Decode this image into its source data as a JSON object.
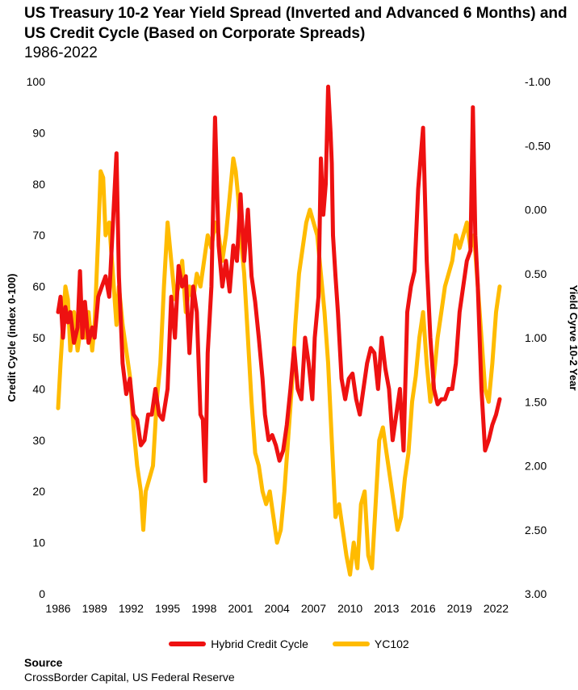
{
  "title": "US Treasury 10-2 Year Yield Spread (Inverted and Advanced 6 Months) and US Credit Cycle (Based on Corporate Spreads)",
  "subtitle": "1986-2022",
  "source": {
    "label": "Source",
    "text": "CrossBorder Capital, US Federal Reserve"
  },
  "chart_data": {
    "type": "line",
    "xlabel": "",
    "ylabel_left": "Credit Cycle (index 0-100)",
    "ylabel_right": "Yield Cyrve 10-2 Year",
    "x_ticks": [
      "1986",
      "1989",
      "1992",
      "1995",
      "1998",
      "2001",
      "2004",
      "2007",
      "2010",
      "2013",
      "2016",
      "2019",
      "2022"
    ],
    "y_left_ticks": [
      "0",
      "10",
      "20",
      "30",
      "40",
      "50",
      "60",
      "70",
      "80",
      "90",
      "100"
    ],
    "y_right_ticks": [
      "3.00",
      "2.50",
      "2.00",
      "1.50",
      "1.00",
      "0.50",
      "0.00",
      "-0.50",
      "-1.00"
    ],
    "xlim": [
      1986,
      2022.5
    ],
    "ylim_left": [
      0,
      100
    ],
    "ylim_right": [
      3.0,
      -1.0
    ],
    "right_axis_inverted": true,
    "grid": false,
    "legend_position": "bottom",
    "series": [
      {
        "name": "Hybrid Credit Cycle",
        "axis": "left",
        "color": "#ee1111",
        "x": [
          1986.0,
          1986.2,
          1986.4,
          1986.6,
          1986.8,
          1987.0,
          1987.3,
          1987.6,
          1987.8,
          1988.0,
          1988.2,
          1988.5,
          1988.8,
          1989.0,
          1989.3,
          1989.6,
          1989.9,
          1990.2,
          1990.5,
          1990.8,
          1991.0,
          1991.3,
          1991.6,
          1991.9,
          1992.2,
          1992.5,
          1992.8,
          1993.1,
          1993.4,
          1993.7,
          1994.0,
          1994.3,
          1994.6,
          1995.0,
          1995.3,
          1995.6,
          1995.9,
          1996.2,
          1996.5,
          1996.8,
          1997.1,
          1997.4,
          1997.7,
          1997.9,
          1998.1,
          1998.3,
          1998.6,
          1998.9,
          1999.2,
          1999.5,
          1999.8,
          2000.1,
          2000.4,
          2000.7,
          2001.0,
          2001.3,
          2001.6,
          2001.9,
          2002.2,
          2002.5,
          2002.8,
          2003.0,
          2003.3,
          2003.6,
          2003.9,
          2004.2,
          2004.5,
          2004.8,
          2005.1,
          2005.4,
          2005.7,
          2006.0,
          2006.3,
          2006.6,
          2006.9,
          2007.1,
          2007.4,
          2007.6,
          2007.8,
          2008.0,
          2008.2,
          2008.4,
          2008.5,
          2008.6,
          2008.8,
          2009.0,
          2009.3,
          2009.6,
          2009.9,
          2010.2,
          2010.5,
          2010.8,
          2011.1,
          2011.4,
          2011.7,
          2012.0,
          2012.3,
          2012.6,
          2012.9,
          2013.2,
          2013.5,
          2013.8,
          2014.1,
          2014.4,
          2014.7,
          2015.0,
          2015.3,
          2015.6,
          2015.8,
          2016.0,
          2016.3,
          2016.6,
          2016.9,
          2017.2,
          2017.5,
          2017.8,
          2018.1,
          2018.4,
          2018.7,
          2019.0,
          2019.3,
          2019.6,
          2019.9,
          2020.1,
          2020.3,
          2020.5,
          2020.8,
          2021.1,
          2021.4,
          2021.7,
          2022.0,
          2022.3
        ],
        "values": [
          55,
          58,
          50,
          56,
          53,
          55,
          49,
          52,
          63,
          50,
          57,
          49,
          52,
          50,
          58,
          60,
          62,
          58,
          72,
          86,
          62,
          45,
          39,
          42,
          35,
          34,
          29,
          30,
          35,
          35,
          40,
          35,
          34,
          40,
          58,
          50,
          64,
          60,
          62,
          47,
          60,
          55,
          35,
          34,
          22,
          47,
          60,
          93,
          68,
          60,
          65,
          59,
          68,
          65,
          78,
          65,
          75,
          62,
          57,
          50,
          42,
          35,
          30,
          31,
          29,
          26,
          28,
          33,
          40,
          48,
          40,
          38,
          50,
          45,
          38,
          50,
          58,
          85,
          74,
          80,
          99,
          90,
          84,
          70,
          62,
          55,
          42,
          38,
          42,
          43,
          38,
          35,
          40,
          45,
          48,
          47,
          40,
          50,
          44,
          40,
          30,
          35,
          40,
          28,
          55,
          60,
          63,
          79,
          85,
          91,
          65,
          50,
          40,
          37,
          38,
          38,
          40,
          40,
          45,
          55,
          60,
          65,
          67,
          95,
          70,
          60,
          40,
          28,
          30,
          33,
          35,
          38
        ]
      },
      {
        "name": "YC102",
        "axis": "right",
        "color": "#ffbb00",
        "x": [
          1986.0,
          1986.2,
          1986.4,
          1986.6,
          1986.8,
          1987.0,
          1987.3,
          1987.6,
          1987.9,
          1988.2,
          1988.5,
          1988.8,
          1989.0,
          1989.3,
          1989.5,
          1989.7,
          1989.9,
          1990.2,
          1990.5,
          1990.8,
          1991.0,
          1991.3,
          1991.6,
          1991.9,
          1992.2,
          1992.5,
          1992.8,
          1993.0,
          1993.2,
          1993.5,
          1993.8,
          1994.1,
          1994.4,
          1994.7,
          1995.0,
          1995.3,
          1995.6,
          1995.9,
          1996.2,
          1996.5,
          1996.8,
          1997.1,
          1997.4,
          1997.7,
          1998.0,
          1998.3,
          1998.6,
          1998.9,
          1999.2,
          1999.5,
          1999.8,
          2000.1,
          2000.4,
          2000.6,
          2000.8,
          2001.0,
          2001.3,
          2001.6,
          2001.9,
          2002.2,
          2002.5,
          2002.8,
          2003.1,
          2003.4,
          2003.7,
          2004.0,
          2004.3,
          2004.6,
          2004.9,
          2005.2,
          2005.5,
          2005.8,
          2006.1,
          2006.4,
          2006.7,
          2007.0,
          2007.3,
          2007.6,
          2007.9,
          2008.2,
          2008.5,
          2008.8,
          2009.1,
          2009.4,
          2009.7,
          2010.0,
          2010.3,
          2010.6,
          2010.9,
          2011.2,
          2011.5,
          2011.8,
          2012.1,
          2012.4,
          2012.7,
          2013.0,
          2013.3,
          2013.6,
          2013.9,
          2014.2,
          2014.5,
          2014.8,
          2015.1,
          2015.4,
          2015.7,
          2016.0,
          2016.3,
          2016.6,
          2016.9,
          2017.2,
          2017.5,
          2017.8,
          2018.1,
          2018.4,
          2018.7,
          2019.0,
          2019.3,
          2019.6,
          2019.9,
          2020.2,
          2020.5,
          2020.8,
          2021.1,
          2021.4,
          2021.7,
          2022.0,
          2022.3
        ],
        "values": [
          1.55,
          1.2,
          0.9,
          0.6,
          0.7,
          1.1,
          0.8,
          1.1,
          0.9,
          1.0,
          0.8,
          1.1,
          0.9,
          0.2,
          -0.3,
          -0.25,
          0.2,
          0.1,
          0.5,
          0.9,
          0.6,
          0.9,
          1.1,
          1.3,
          1.7,
          2.0,
          2.2,
          2.5,
          2.2,
          2.1,
          2.0,
          1.5,
          1.2,
          0.6,
          0.1,
          0.4,
          0.7,
          0.6,
          0.4,
          0.8,
          0.6,
          0.7,
          0.5,
          0.6,
          0.4,
          0.2,
          0.3,
          0.1,
          0.2,
          0.4,
          0.2,
          -0.1,
          -0.4,
          -0.3,
          -0.1,
          0.2,
          0.5,
          1.0,
          1.5,
          1.9,
          2.0,
          2.2,
          2.3,
          2.2,
          2.4,
          2.6,
          2.5,
          2.2,
          1.8,
          1.4,
          0.9,
          0.5,
          0.3,
          0.1,
          0.0,
          0.1,
          0.2,
          0.5,
          0.8,
          1.2,
          1.8,
          2.4,
          2.3,
          2.5,
          2.7,
          2.85,
          2.6,
          2.8,
          2.3,
          2.2,
          2.7,
          2.8,
          2.3,
          1.8,
          1.7,
          1.9,
          2.1,
          2.3,
          2.5,
          2.4,
          2.1,
          1.9,
          1.5,
          1.3,
          1.0,
          0.8,
          1.2,
          1.5,
          1.3,
          1.0,
          0.8,
          0.6,
          0.5,
          0.4,
          0.2,
          0.3,
          0.2,
          0.1,
          0.3,
          0.2,
          0.6,
          1.0,
          1.4,
          1.5,
          1.2,
          0.8,
          0.6
        ]
      }
    ]
  }
}
